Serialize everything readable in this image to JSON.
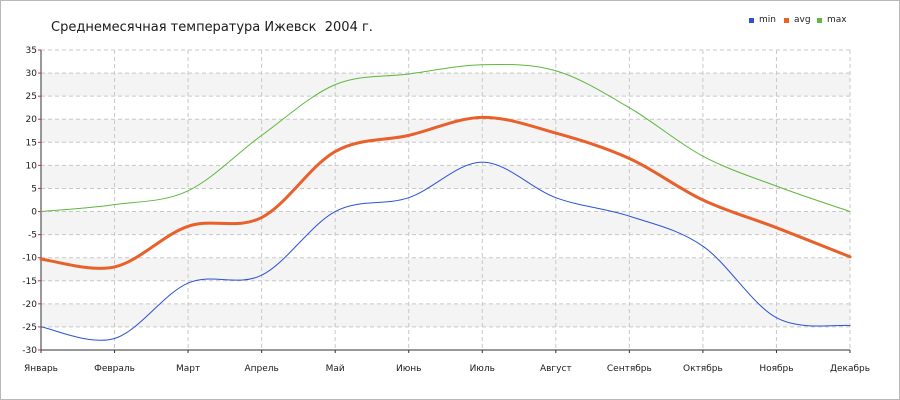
{
  "chart_data": {
    "type": "line",
    "title": "Среднемесячная температура Ижевск  2004 г.",
    "categories": [
      "Январь",
      "Февраль",
      "Март",
      "Апрель",
      "Май",
      "Июнь",
      "Июль",
      "Август",
      "Сентябрь",
      "Октябрь",
      "Ноябрь",
      "Декабрь"
    ],
    "yticks": [
      35,
      30,
      25,
      20,
      15,
      10,
      5,
      0,
      -5,
      -10,
      -15,
      -20,
      -25,
      -30
    ],
    "ylim": [
      -30,
      35
    ],
    "grid": true,
    "legend": "top-right",
    "series": [
      {
        "name": "min",
        "color": "#2a52d6",
        "width": 1,
        "values": [
          -25,
          -27.5,
          -15.5,
          -13.8,
          0,
          3,
          10.7,
          3,
          -1,
          -7.5,
          -23,
          -24.7
        ]
      },
      {
        "name": "avg",
        "color": "#e8602a",
        "width": 3,
        "values": [
          -10.3,
          -12,
          -3.2,
          -1.3,
          13,
          16.5,
          20.4,
          17,
          11.5,
          2.5,
          -3.5,
          -9.8
        ]
      },
      {
        "name": "max",
        "color": "#5cb83e",
        "width": 1,
        "values": [
          0,
          1.5,
          4.5,
          16.5,
          27.5,
          29.8,
          31.8,
          30.5,
          22.5,
          12,
          5.5,
          0
        ]
      }
    ]
  }
}
